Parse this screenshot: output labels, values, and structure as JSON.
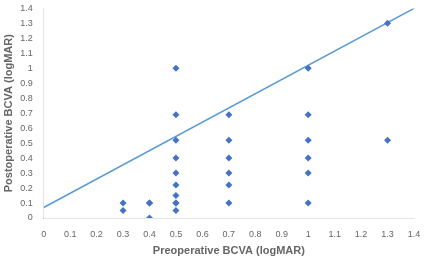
{
  "chart_data": {
    "type": "scatter",
    "xlabel": "Preoperative BCVA (logMAR)",
    "ylabel": "Postoperative BCVA (logMAR)",
    "series": [
      {
        "type": "line",
        "color": "#5B9BD5",
        "x": [
          0,
          1.4
        ],
        "values": [
          0.07,
          1.4
        ]
      },
      {
        "type": "scatter",
        "color": "#4472C4",
        "marker": "diamond",
        "x": [
          0.3,
          0.3,
          0.4,
          0.4,
          0.4,
          0.5,
          0.5,
          0.5,
          0.5,
          0.5,
          0.5,
          0.5,
          0.5,
          0.5,
          0.5,
          0.7,
          0.7,
          0.7,
          0.7,
          0.7,
          0.7,
          1.0,
          1.0,
          1.0,
          1.0,
          1.0,
          1.0,
          1.3,
          1.3
        ],
        "values": [
          0.1,
          0.05,
          0.1,
          0.1,
          0.0,
          0.05,
          0.1,
          0.1,
          0.15,
          0.22,
          0.3,
          0.4,
          0.52,
          0.69,
          1.0,
          0.1,
          0.22,
          0.3,
          0.4,
          0.52,
          0.69,
          0.1,
          0.3,
          0.4,
          0.52,
          0.69,
          1.0,
          1.3,
          0.52
        ]
      }
    ],
    "xlim": [
      0,
      1.4
    ],
    "ylim": [
      0,
      1.4
    ],
    "xticks": [
      0,
      0.1,
      0.2,
      0.3,
      0.4,
      0.5,
      0.6,
      0.7,
      0.8,
      0.9,
      1.0,
      1.1,
      1.2,
      1.3,
      1.4
    ],
    "yticks": [
      0,
      0.1,
      0.2,
      0.3,
      0.4,
      0.5,
      0.6,
      0.7,
      0.8,
      0.9,
      1.0,
      1.1,
      1.2,
      1.3,
      1.4
    ],
    "grid": false
  }
}
